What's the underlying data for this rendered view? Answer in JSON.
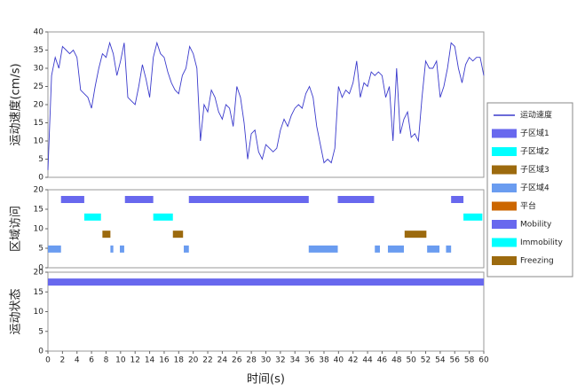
{
  "chart_data": [
    {
      "type": "line",
      "ylabel": "运动速度(cm/s)",
      "xlim": [
        0,
        60
      ],
      "ylim": [
        0,
        40
      ],
      "yticks": [
        0,
        5,
        10,
        15,
        20,
        25,
        30,
        35,
        40
      ],
      "x": [
        0,
        0.5,
        1,
        1.5,
        2,
        2.5,
        3,
        3.5,
        4,
        4.5,
        5,
        5.5,
        6,
        6.5,
        7,
        7.5,
        8,
        8.5,
        9,
        9.5,
        10,
        10.5,
        11,
        11.5,
        12,
        12.5,
        13,
        13.5,
        14,
        14.5,
        15,
        15.5,
        16,
        16.5,
        17,
        17.5,
        18,
        18.5,
        19,
        19.5,
        20,
        20.5,
        21,
        21.5,
        22,
        22.5,
        23,
        23.5,
        24,
        24.5,
        25,
        25.5,
        26,
        26.5,
        27,
        27.5,
        28,
        28.5,
        29,
        29.5,
        30,
        30.5,
        31,
        31.5,
        32,
        32.5,
        33,
        33.5,
        34,
        34.5,
        35,
        35.5,
        36,
        36.5,
        37,
        37.5,
        38,
        38.5,
        39,
        39.5,
        40,
        40.5,
        41,
        41.5,
        42,
        42.5,
        43,
        43.5,
        44,
        44.5,
        45,
        45.5,
        46,
        46.5,
        47,
        47.5,
        48,
        48.5,
        49,
        49.5,
        50,
        50.5,
        51,
        51.5,
        52,
        52.5,
        53,
        53.5,
        54,
        54.5,
        55,
        55.5,
        56,
        56.5,
        57,
        57.5,
        58,
        58.5,
        59,
        59.5,
        60
      ],
      "series": [
        {
          "name": "运动速度",
          "color": "#3a3acc",
          "values": [
            2,
            28,
            33,
            30,
            36,
            35,
            34,
            35,
            33,
            24,
            23,
            22,
            19,
            25,
            30,
            34,
            33,
            37,
            34,
            28,
            32,
            37,
            22,
            21,
            20,
            25,
            31,
            27,
            22,
            33,
            37,
            34,
            33,
            29,
            26,
            24,
            23,
            28,
            30,
            36,
            34,
            30,
            10,
            20,
            18,
            24,
            22,
            18,
            16,
            20,
            19,
            14,
            25,
            22,
            15,
            5,
            12,
            13,
            7,
            5,
            9,
            8,
            7,
            8,
            13,
            16,
            14,
            17,
            19,
            20,
            19,
            23,
            25,
            22,
            14,
            9,
            4,
            5,
            4,
            8,
            25,
            22,
            24,
            23,
            26,
            32,
            22,
            26,
            25,
            29,
            28,
            29,
            28,
            22,
            25,
            10,
            30,
            12,
            16,
            18,
            11,
            12,
            10,
            22,
            32,
            30,
            30,
            32,
            22,
            25,
            30,
            37,
            36,
            30,
            26,
            31,
            33,
            32,
            33,
            33,
            28
          ]
        }
      ]
    },
    {
      "type": "gantt",
      "ylabel": "区域访问",
      "xlim": [
        0,
        60
      ],
      "ylim": [
        0,
        20
      ],
      "yticks": [
        0,
        5,
        10,
        15,
        20
      ],
      "series": [
        {
          "name": "子区域1",
          "color": "#6868ee",
          "level": 17.5,
          "intervals": [
            [
              1.8,
              5.0
            ],
            [
              10.6,
              14.5
            ],
            [
              19.4,
              35.9
            ],
            [
              39.9,
              44.9
            ],
            [
              55.5,
              57.2
            ]
          ]
        },
        {
          "name": "子区域2",
          "color": "#00ffff",
          "level": 13,
          "intervals": [
            [
              5.0,
              7.3
            ],
            [
              14.5,
              17.2
            ],
            [
              57.2,
              59.8
            ]
          ]
        },
        {
          "name": "子区域3",
          "color": "#9c6a0e",
          "level": 8.6,
          "intervals": [
            [
              7.5,
              8.6
            ],
            [
              17.2,
              18.6
            ],
            [
              49.1,
              52.1
            ]
          ]
        },
        {
          "name": "子区域4",
          "color": "#6a9cf0",
          "level": 4.8,
          "intervals": [
            [
              0,
              1.8
            ],
            [
              8.6,
              9.0
            ],
            [
              9.9,
              10.5
            ],
            [
              18.7,
              19.4
            ],
            [
              35.9,
              39.9
            ],
            [
              45.0,
              45.7
            ],
            [
              46.8,
              49.0
            ],
            [
              52.2,
              53.9
            ],
            [
              54.8,
              55.5
            ]
          ]
        },
        {
          "name": "平台",
          "color": "#cc6600",
          "level": 2,
          "intervals": []
        }
      ]
    },
    {
      "type": "gantt",
      "ylabel": "运动状态",
      "xlabel": "时间(s)",
      "xlim": [
        0,
        60
      ],
      "xticks": [
        0,
        2,
        4,
        6,
        8,
        10,
        12,
        14,
        16,
        18,
        20,
        22,
        24,
        26,
        28,
        30,
        32,
        34,
        36,
        38,
        40,
        42,
        44,
        46,
        48,
        50,
        52,
        54,
        56,
        58,
        60
      ],
      "ylim": [
        0,
        20
      ],
      "yticks": [
        0,
        5,
        10,
        15,
        20
      ],
      "series": [
        {
          "name": "Mobility",
          "color": "#6868ee",
          "level": 17.5,
          "intervals": [
            [
              0,
              60
            ]
          ]
        },
        {
          "name": "Immobility",
          "color": "#00ffff",
          "level": 12.5,
          "intervals": []
        },
        {
          "name": "Freezing",
          "color": "#9c6a0e",
          "level": 7.5,
          "intervals": []
        }
      ]
    }
  ]
}
